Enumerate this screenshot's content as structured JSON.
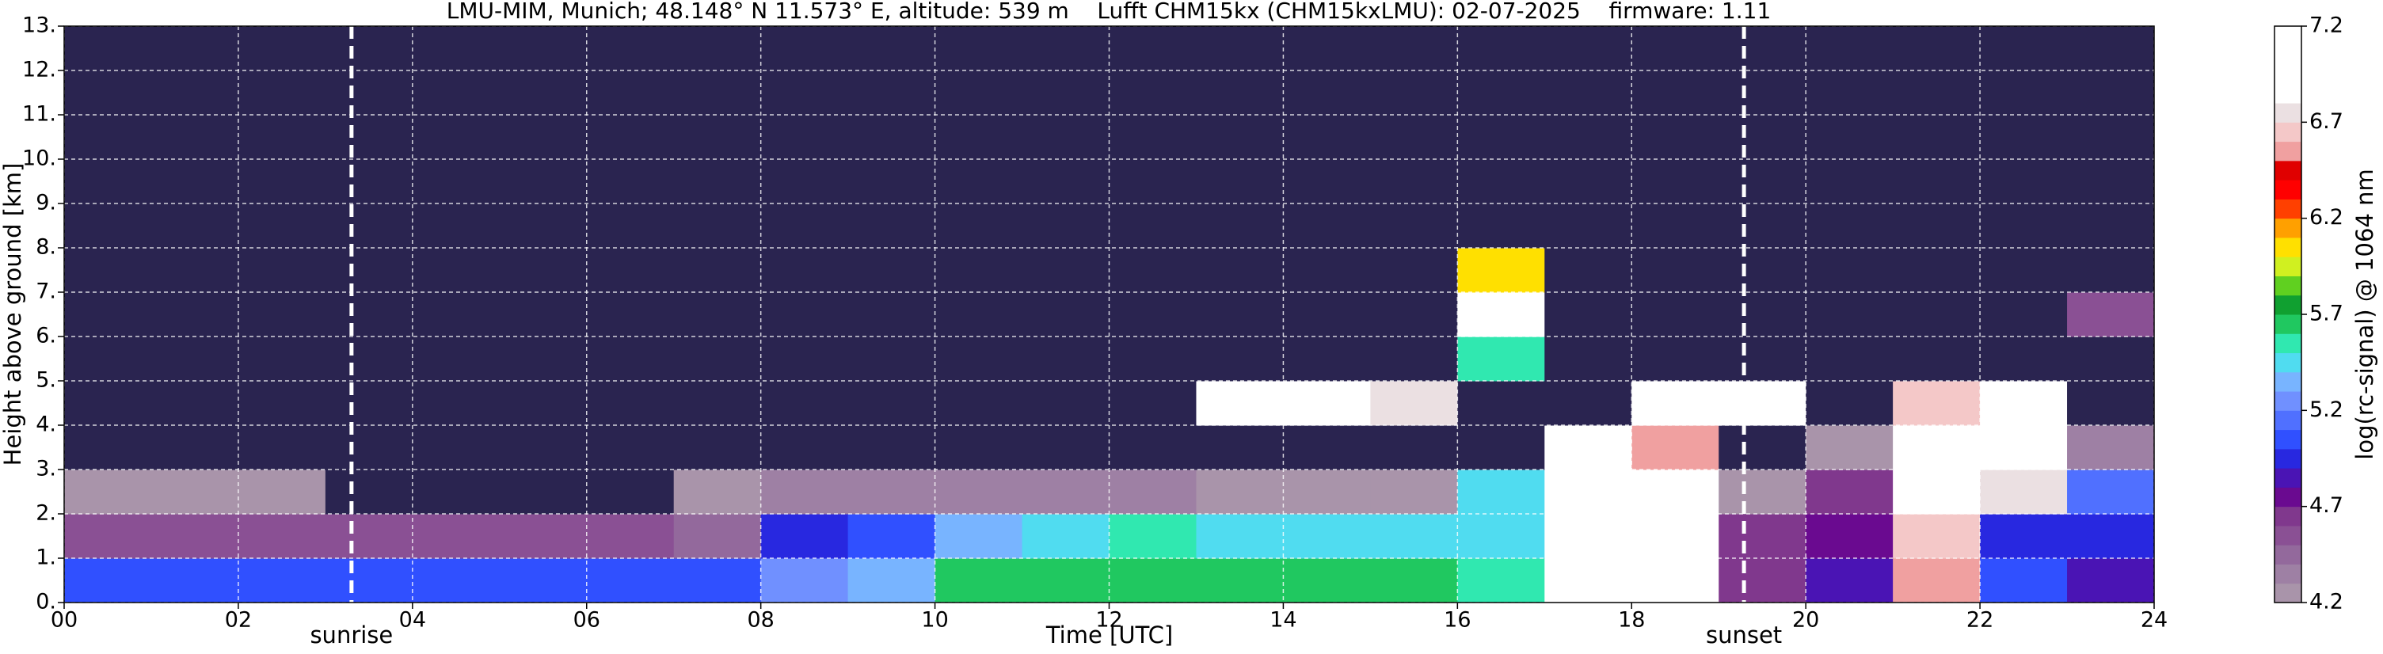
{
  "chart_data": {
    "type": "heatmap",
    "title": "LMU-MIM, Munich; 48.148° N 11.573° E, altitude: 539 m    Lufft CHM15kx (CHM15kxLMU): 02-07-2025    firmware: 1.11",
    "xlabel": "Time [UTC]",
    "ylabel": "Height above ground [km]",
    "xlim": [
      0,
      24
    ],
    "ylim": [
      0,
      13
    ],
    "xticks": [
      {
        "value": 0,
        "label": "00"
      },
      {
        "value": 2,
        "label": "02"
      },
      {
        "value": 4,
        "label": "04"
      },
      {
        "value": 6,
        "label": "06"
      },
      {
        "value": 8,
        "label": "08"
      },
      {
        "value": 10,
        "label": "10"
      },
      {
        "value": 12,
        "label": "12"
      },
      {
        "value": 14,
        "label": "14"
      },
      {
        "value": 16,
        "label": "16"
      },
      {
        "value": 18,
        "label": "18"
      },
      {
        "value": 20,
        "label": "20"
      },
      {
        "value": 22,
        "label": "22"
      },
      {
        "value": 24,
        "label": "24"
      }
    ],
    "yticks": [
      {
        "value": 0,
        "label": "0."
      },
      {
        "value": 1,
        "label": "1."
      },
      {
        "value": 2,
        "label": "2."
      },
      {
        "value": 3,
        "label": "3."
      },
      {
        "value": 4,
        "label": "4."
      },
      {
        "value": 5,
        "label": "5."
      },
      {
        "value": 6,
        "label": "6."
      },
      {
        "value": 7,
        "label": "7."
      },
      {
        "value": 8,
        "label": "8."
      },
      {
        "value": 9,
        "label": "9."
      },
      {
        "value": 10,
        "label": "10."
      },
      {
        "value": 11,
        "label": "11."
      },
      {
        "value": 12,
        "label": "12."
      },
      {
        "value": 13,
        "label": "13."
      }
    ],
    "grid": true,
    "x_edges": [
      0,
      1,
      2,
      3,
      4,
      5,
      6,
      7,
      8,
      9,
      10,
      11,
      12,
      13,
      14,
      15,
      16,
      17,
      18,
      19,
      20,
      21,
      22,
      23,
      24
    ],
    "y_edges": [
      0,
      1,
      2,
      3,
      4,
      5,
      6,
      7,
      8,
      9,
      10,
      11,
      12,
      13
    ],
    "z": [
      [
        5.0,
        5.0,
        5.0,
        5.0,
        5.0,
        5.0,
        5.0,
        5.0,
        5.2,
        5.3,
        5.6,
        5.6,
        5.6,
        5.6,
        5.6,
        5.6,
        5.5,
        6.9,
        7.0,
        4.6,
        4.8,
        6.5,
        5.0,
        4.8
      ],
      [
        4.5,
        4.5,
        4.5,
        4.5,
        4.5,
        4.5,
        4.5,
        4.4,
        4.9,
        5.0,
        5.3,
        5.4,
        5.5,
        5.4,
        5.4,
        5.4,
        5.4,
        7.0,
        7.0,
        4.6,
        4.7,
        6.6,
        4.9,
        4.9
      ],
      [
        4.2,
        4.2,
        4.2,
        4.1,
        4.1,
        4.1,
        4.1,
        4.2,
        4.3,
        4.3,
        4.3,
        4.3,
        4.3,
        4.2,
        4.2,
        4.2,
        5.4,
        7.0,
        6.8,
        4.2,
        4.6,
        6.8,
        6.7,
        5.1
      ],
      [
        4.0,
        4.0,
        4.0,
        4.0,
        4.0,
        4.0,
        4.0,
        4.0,
        4.0,
        4.0,
        4.0,
        4.0,
        4.0,
        4.0,
        4.0,
        4.0,
        4.0,
        6.9,
        6.5,
        4.0,
        4.2,
        6.9,
        6.9,
        4.3
      ],
      [
        4.0,
        4.0,
        4.0,
        4.0,
        4.0,
        4.0,
        4.0,
        4.0,
        4.0,
        4.0,
        4.0,
        4.0,
        4.0,
        6.9,
        6.9,
        6.7,
        4.0,
        4.0,
        6.8,
        6.9,
        4.0,
        6.6,
        6.8,
        4.0
      ],
      [
        4.0,
        4.0,
        4.0,
        4.0,
        4.0,
        4.0,
        4.0,
        4.0,
        4.0,
        4.0,
        4.0,
        4.0,
        4.0,
        4.0,
        4.0,
        4.0,
        5.5,
        4.0,
        4.0,
        4.0,
        4.0,
        4.0,
        4.0,
        4.0
      ],
      [
        4.0,
        4.0,
        4.0,
        4.0,
        4.0,
        4.0,
        4.0,
        4.0,
        4.0,
        4.0,
        4.0,
        4.0,
        4.0,
        4.0,
        4.0,
        4.0,
        6.9,
        4.0,
        4.0,
        4.0,
        4.0,
        4.0,
        4.0,
        4.5
      ],
      [
        4.0,
        4.0,
        4.0,
        4.0,
        4.0,
        4.0,
        4.0,
        4.0,
        4.0,
        4.0,
        4.0,
        4.0,
        4.0,
        4.0,
        4.0,
        4.0,
        6.0,
        4.0,
        4.0,
        4.0,
        4.0,
        4.0,
        4.0,
        4.0
      ],
      [
        4.0,
        4.0,
        4.0,
        4.0,
        4.0,
        4.0,
        4.0,
        4.0,
        4.0,
        4.0,
        4.0,
        4.0,
        4.0,
        4.0,
        4.0,
        4.0,
        4.0,
        4.0,
        4.0,
        4.0,
        4.0,
        4.0,
        4.0,
        4.0
      ],
      [
        4.0,
        4.0,
        4.0,
        4.0,
        4.0,
        4.0,
        4.0,
        4.0,
        4.0,
        4.0,
        4.0,
        4.0,
        4.0,
        4.0,
        4.0,
        4.0,
        4.0,
        4.0,
        4.0,
        4.0,
        4.0,
        4.0,
        4.0,
        4.0
      ],
      [
        4.0,
        4.0,
        4.0,
        4.0,
        4.0,
        4.0,
        4.0,
        4.0,
        4.0,
        4.0,
        4.0,
        4.0,
        4.0,
        4.0,
        4.0,
        4.0,
        4.0,
        4.0,
        4.0,
        4.0,
        4.0,
        4.0,
        4.0,
        4.0
      ],
      [
        4.0,
        4.0,
        4.0,
        4.0,
        4.0,
        4.0,
        4.0,
        4.0,
        4.0,
        4.0,
        4.0,
        4.0,
        4.0,
        4.0,
        4.0,
        4.0,
        4.0,
        4.0,
        4.0,
        4.0,
        4.0,
        4.0,
        4.0,
        4.0
      ],
      [
        4.0,
        4.0,
        4.0,
        4.0,
        4.0,
        4.0,
        4.0,
        4.0,
        4.0,
        4.0,
        4.0,
        4.0,
        4.0,
        4.0,
        4.0,
        4.0,
        4.0,
        4.0,
        4.0,
        4.0,
        4.0,
        4.0,
        4.0,
        4.0
      ]
    ],
    "annotations": [
      {
        "x": 3.3,
        "text": "sunrise"
      },
      {
        "x": 19.29,
        "text": "sunset"
      }
    ],
    "colorbar": {
      "label": "log(rc-signal) @ 1064 nm",
      "clim": [
        4.2,
        7.2
      ],
      "cticks": [
        4.2,
        4.7,
        5.2,
        5.7,
        6.2,
        6.7,
        7.2
      ],
      "under_color": "#2a2450",
      "colormap": [
        "#a994aa",
        "#9e80a4",
        "#93699c",
        "#8a5094",
        "#80388d",
        "#6a0a90",
        "#4a14b4",
        "#2828e0",
        "#3050ff",
        "#5070ff",
        "#7090ff",
        "#78b4ff",
        "#50dcf0",
        "#30e8b0",
        "#20c860",
        "#10a030",
        "#60d020",
        "#d0f020",
        "#ffe000",
        "#ffa000",
        "#ff4000",
        "#ff0000",
        "#e00000",
        "#f0a0a0",
        "#f4c8c8",
        "#ebe0e2",
        "#ffffff",
        "#ffffff",
        "#ffffff",
        "#ffffff"
      ]
    }
  }
}
